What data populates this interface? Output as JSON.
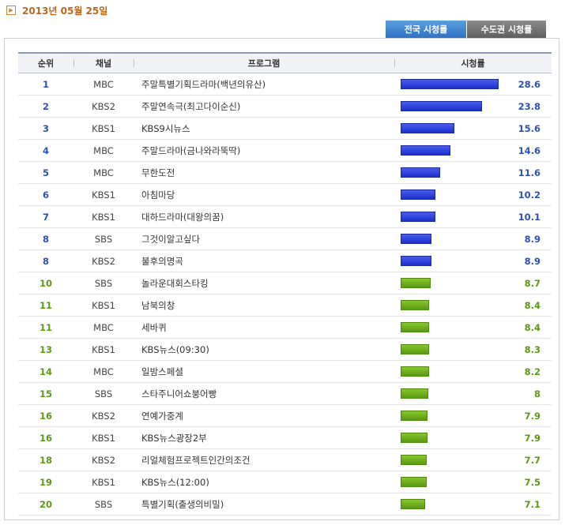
{
  "date": "2013년 05월 25일",
  "tabs": [
    {
      "label": "전국 시청률",
      "active": true
    },
    {
      "label": "수도권 시청률",
      "active": false
    }
  ],
  "columns": {
    "rank": "순위",
    "channel": "채널",
    "program": "프로그램",
    "rating": "시청률"
  },
  "colors": {
    "top_bar": "#2333d6",
    "rest_bar": "#6aab18",
    "top_text": "#2c4fc3",
    "rest_text": "#5b9a12"
  },
  "max_rating": 28.6,
  "rows": [
    {
      "rank": "1",
      "channel": "MBC",
      "program": "주말특별기획드라마(백년의유산)",
      "rating": "28.6",
      "tier": "blue"
    },
    {
      "rank": "2",
      "channel": "KBS2",
      "program": "주말연속극(최고다이순신)",
      "rating": "23.8",
      "tier": "blue"
    },
    {
      "rank": "3",
      "channel": "KBS1",
      "program": "KBS9시뉴스",
      "rating": "15.6",
      "tier": "blue"
    },
    {
      "rank": "4",
      "channel": "MBC",
      "program": "주말드라마(금나와라뚝딱)",
      "rating": "14.6",
      "tier": "blue"
    },
    {
      "rank": "5",
      "channel": "MBC",
      "program": "무한도전",
      "rating": "11.6",
      "tier": "blue"
    },
    {
      "rank": "6",
      "channel": "KBS1",
      "program": "아침마당",
      "rating": "10.2",
      "tier": "blue"
    },
    {
      "rank": "7",
      "channel": "KBS1",
      "program": "대하드라마(대왕의꿈)",
      "rating": "10.1",
      "tier": "blue"
    },
    {
      "rank": "8",
      "channel": "SBS",
      "program": "그것이알고싶다",
      "rating": "8.9",
      "tier": "blue"
    },
    {
      "rank": "8",
      "channel": "KBS2",
      "program": "불후의명곡",
      "rating": "8.9",
      "tier": "blue"
    },
    {
      "rank": "10",
      "channel": "SBS",
      "program": "놀라운대회스타킹",
      "rating": "8.7",
      "tier": "green"
    },
    {
      "rank": "11",
      "channel": "KBS1",
      "program": "남북의창",
      "rating": "8.4",
      "tier": "green"
    },
    {
      "rank": "11",
      "channel": "MBC",
      "program": "세바퀴",
      "rating": "8.4",
      "tier": "green"
    },
    {
      "rank": "13",
      "channel": "KBS1",
      "program": "KBS뉴스(09:30)",
      "rating": "8.3",
      "tier": "green"
    },
    {
      "rank": "14",
      "channel": "MBC",
      "program": "일밤스페셜",
      "rating": "8.2",
      "tier": "green"
    },
    {
      "rank": "15",
      "channel": "SBS",
      "program": "스타주니어쇼붕어빵",
      "rating": "8",
      "tier": "green"
    },
    {
      "rank": "16",
      "channel": "KBS2",
      "program": "연예가중계",
      "rating": "7.9",
      "tier": "green"
    },
    {
      "rank": "16",
      "channel": "KBS1",
      "program": "KBS뉴스광장2부",
      "rating": "7.9",
      "tier": "green"
    },
    {
      "rank": "18",
      "channel": "KBS2",
      "program": "리얼체험프로젝트인간의조건",
      "rating": "7.7",
      "tier": "green"
    },
    {
      "rank": "19",
      "channel": "KBS1",
      "program": "KBS뉴스(12:00)",
      "rating": "7.5",
      "tier": "green"
    },
    {
      "rank": "20",
      "channel": "SBS",
      "program": "특별기획(출생의비밀)",
      "rating": "7.1",
      "tier": "green"
    }
  ]
}
